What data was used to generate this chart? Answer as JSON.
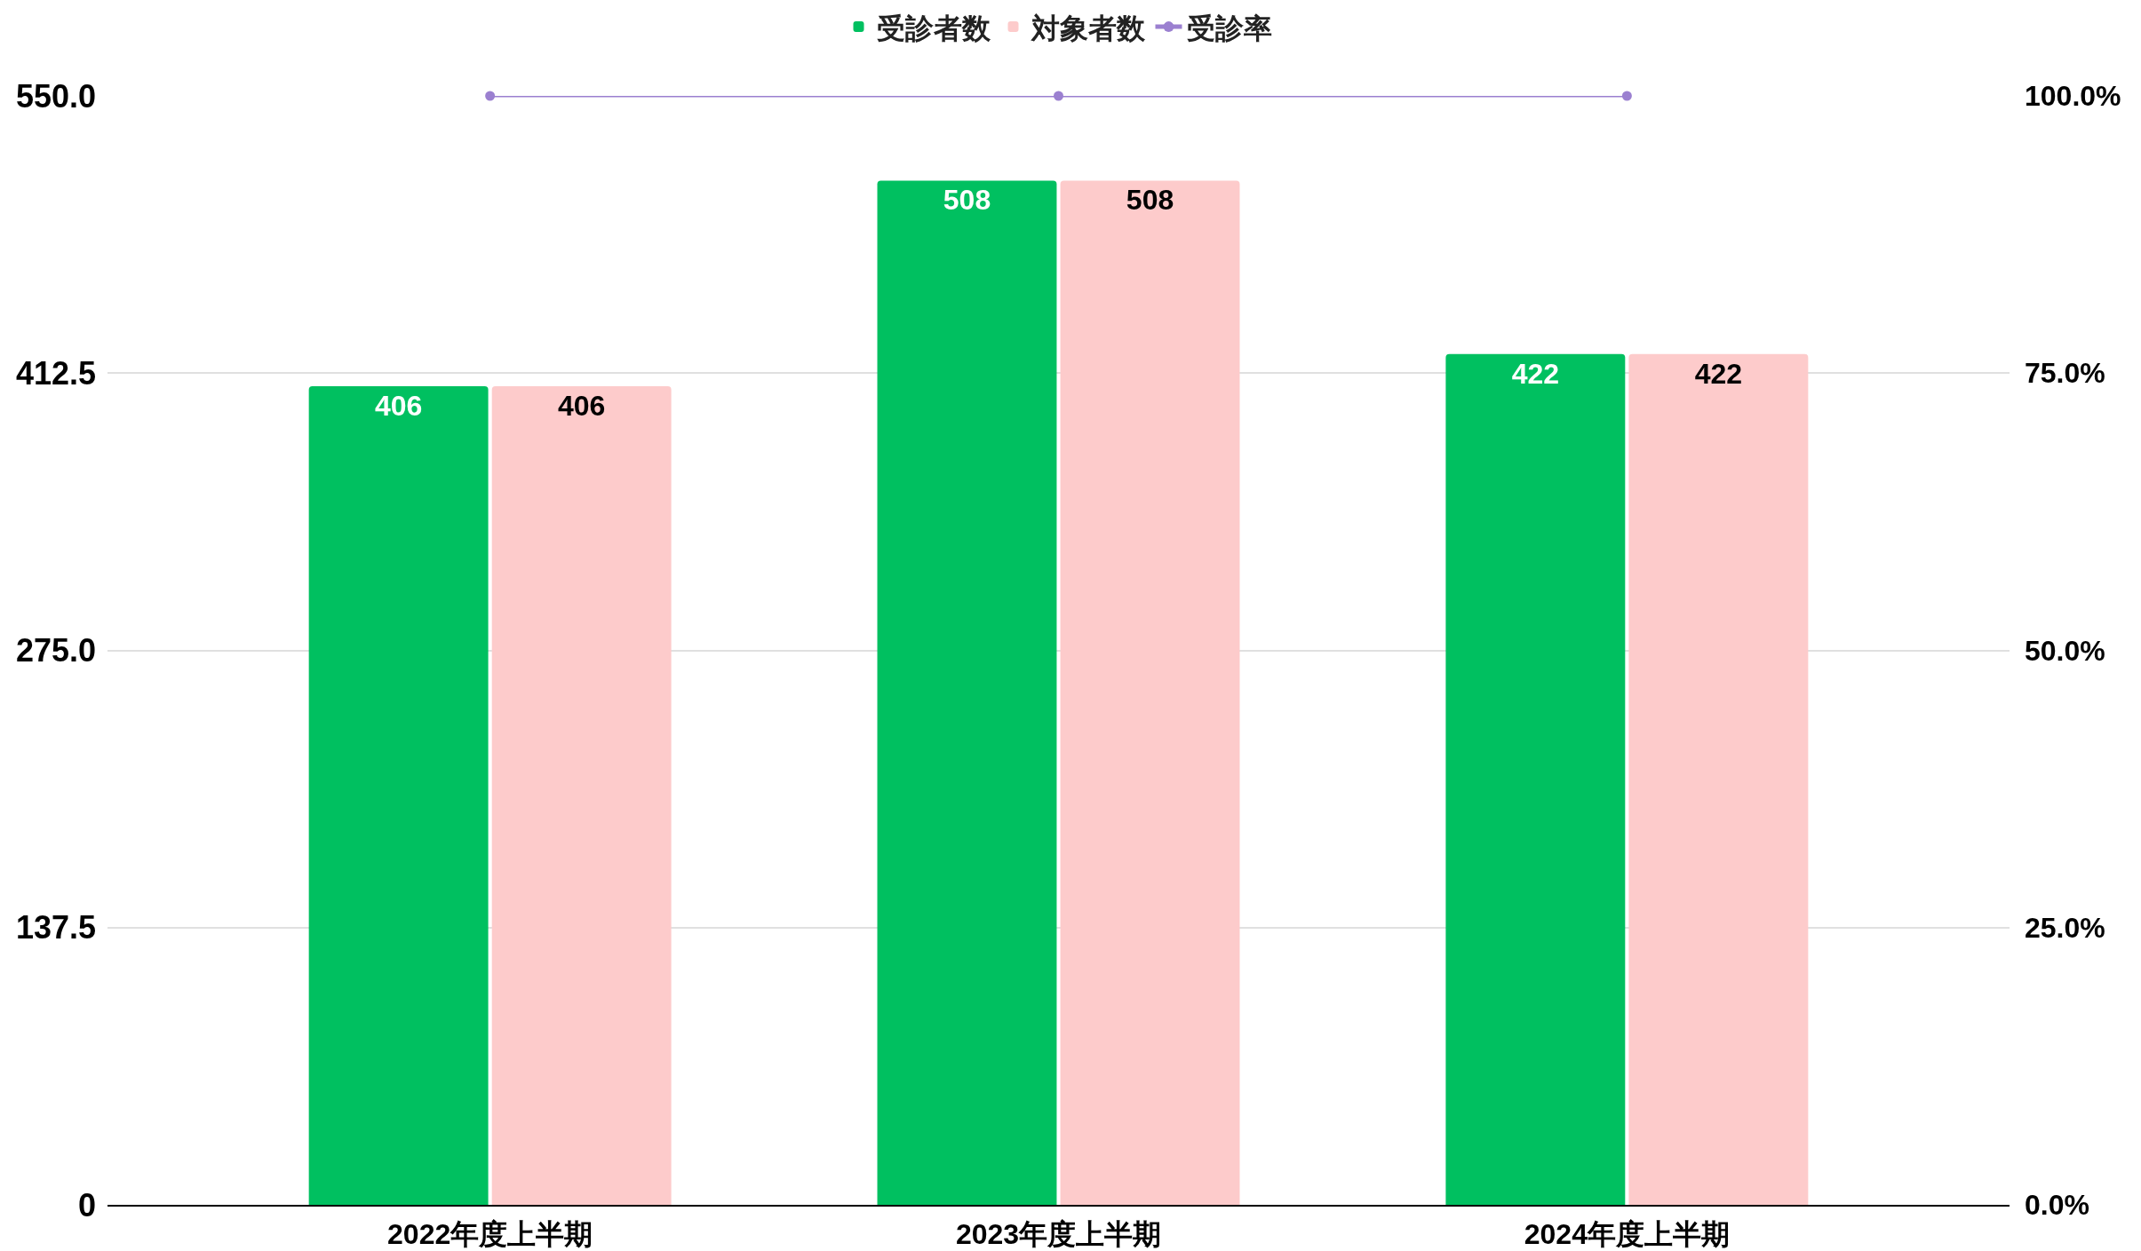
{
  "chart_data": {
    "type": "bar",
    "categories": [
      "2022年度上半期",
      "2023年度上半期",
      "2024年度上半期"
    ],
    "series": [
      {
        "name": "受診者数",
        "color": "#00c060",
        "values": [
          406,
          508,
          422
        ],
        "data_labels": true
      },
      {
        "name": "対象者数",
        "color": "#fdcbcb",
        "values": [
          406,
          508,
          422
        ],
        "data_labels": true
      },
      {
        "name": "受診率",
        "type": "line",
        "axis": "y2",
        "color": "#9b80d0",
        "values": [
          100,
          100,
          100
        ],
        "marker": "circle",
        "line_style": "solid"
      }
    ],
    "ylim": [
      0,
      550
    ],
    "yticks": [
      0,
      137.5,
      {
        "value": 275,
        "label": "275.0"
      },
      412.5,
      {
        "value": 550,
        "label": "550.0"
      }
    ],
    "y2lim": [
      0,
      100
    ],
    "y2ticks": [
      {
        "value": 0,
        "label": "0.0%"
      },
      {
        "value": 25,
        "label": "25.0%"
      },
      {
        "value": 50,
        "label": "50.0%"
      },
      {
        "value": 75,
        "label": "75.0%"
      },
      {
        "value": 100,
        "label": "100.0%"
      }
    ],
    "grid": "y",
    "legend": "top"
  }
}
